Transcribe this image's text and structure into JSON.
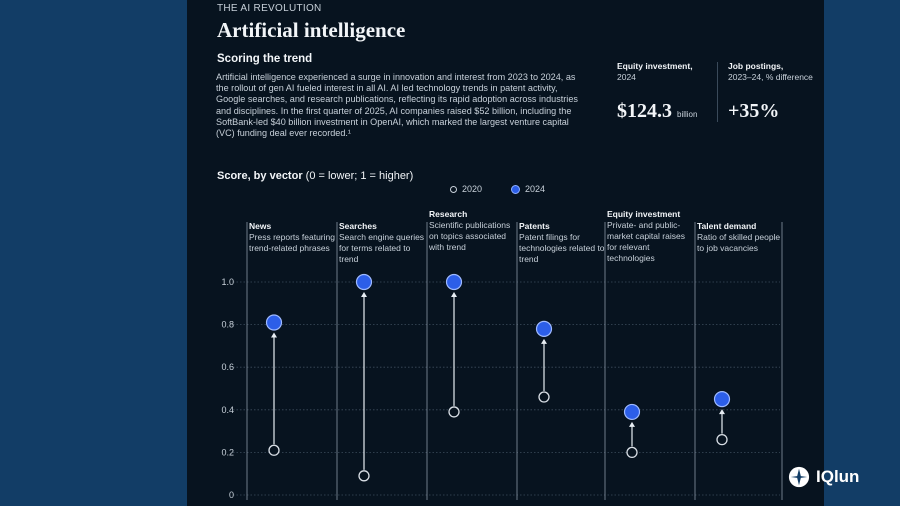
{
  "kicker": "THE AI REVOLUTION",
  "title": "Artificial intelligence",
  "subtitle": "Scoring the trend",
  "body": "Artificial intelligence experienced a surge in innovation and interest from 2023 to 2024, as the rollout of gen AI fueled interest in all AI. AI led technology trends in patent activity, Google searches, and research publications, reflecting its rapid adoption across industries and disciplines. In the first quarter of 2025, AI companies raised $52 billion, including the SoftBank-led $40 billion investment in OpenAI, which marked the largest venture capital (VC) funding deal ever recorded.¹",
  "stats": {
    "equity": {
      "label_bold": "Equity investment,",
      "label_rest": "2024",
      "value": "$124.3",
      "unit": "billion"
    },
    "jobs": {
      "label_bold": "Job postings,",
      "label_rest": "2023–24, % difference",
      "value": "+35%"
    }
  },
  "score_title": {
    "bold": "Score, by vector",
    "rest": " (0 = lower; 1 = higher)"
  },
  "legend": {
    "y2020": "2020",
    "y2024": "2024"
  },
  "colors": {
    "accent_2024": "#2c5ee8",
    "page_bg": "#123d66",
    "panel_bg": "#07131f"
  },
  "brand": {
    "name": "IQlun"
  },
  "chart_data": {
    "type": "dot",
    "ylim": [
      0,
      1
    ],
    "yticks": [
      "0",
      "0.2",
      "0.4",
      "0.6",
      "0.8",
      "1.0"
    ],
    "categories": [
      {
        "name": "News",
        "desc": "Press reports featuring trend-related phrases"
      },
      {
        "name": "Searches",
        "desc": "Search engine queries for terms related to trend"
      },
      {
        "name": "Research",
        "desc": "Scientific publications on topics associated with trend"
      },
      {
        "name": "Patents",
        "desc": "Patent filings for technologies related to trend"
      },
      {
        "name": "Equity investment",
        "desc": "Private- and public-market capital raises for relevant technologies"
      },
      {
        "name": "Talent demand",
        "desc": "Ratio of skilled people to job vacancies"
      }
    ],
    "series": [
      {
        "name": "2020",
        "values": [
          0.21,
          0.09,
          0.39,
          0.46,
          0.2,
          0.26
        ]
      },
      {
        "name": "2024",
        "values": [
          0.81,
          1.0,
          1.0,
          0.78,
          0.39,
          0.45
        ]
      }
    ]
  }
}
